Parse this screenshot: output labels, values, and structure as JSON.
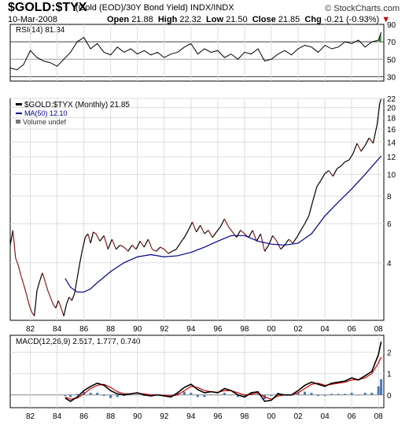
{
  "header": {
    "symbol": "$GOLD:$TYX",
    "description": "(Gold (EOD)/30Y Bond Yield)  INDX/INDX",
    "site": "© StockCharts.com",
    "date": "10-Mar-2008",
    "open_label": "Open",
    "open": "21.88",
    "high_label": "High",
    "high": "22.32",
    "low_label": "Low",
    "low": "21.50",
    "close_label": "Close",
    "close": "21.85",
    "chg_label": "Chg",
    "chg": "-0.21 (-0.93%)"
  },
  "colors": {
    "price_up": "#000000",
    "price_down": "#8b1a1a",
    "ma": "#00008b",
    "macd_signal": "#d40000",
    "macd_hist": "#4a7ab8",
    "rsi_fill": "#2e8b2e"
  },
  "chart_data": [
    {
      "type": "line",
      "panel": "rsi",
      "legend": "RSI(14) 81.34",
      "ylim": [
        25,
        90
      ],
      "yticks": [
        30,
        50,
        70,
        90
      ],
      "reference_lines": [
        30,
        50,
        70
      ],
      "series": [
        {
          "x": [
            1980.5,
            1981,
            1981.5,
            1982,
            1982.5,
            1983,
            1983.5,
            1984,
            1984.5,
            1985,
            1985.5,
            1986,
            1986.5,
            1987,
            1987.5,
            1988,
            1988.5,
            1989,
            1989.5,
            1990,
            1990.5,
            1991,
            1991.5,
            1992,
            1992.5,
            1993,
            1993.5,
            1994,
            1994.5,
            1995,
            1995.5,
            1996,
            1996.5,
            1997,
            1997.5,
            1998,
            1998.5,
            1999,
            1999.5,
            2000,
            2000.5,
            2001,
            2001.5,
            2002,
            2002.5,
            2003,
            2003.5,
            2004,
            2004.5,
            2005,
            2005.5,
            2006,
            2006.5,
            2007,
            2007.5,
            2008,
            2008.2
          ],
          "values": [
            40,
            38,
            44,
            60,
            52,
            48,
            46,
            42,
            50,
            58,
            70,
            75,
            62,
            68,
            58,
            55,
            64,
            58,
            62,
            56,
            60,
            55,
            58,
            52,
            56,
            58,
            64,
            68,
            56,
            62,
            58,
            60,
            52,
            56,
            50,
            58,
            56,
            62,
            48,
            50,
            56,
            60,
            55,
            62,
            66,
            64,
            58,
            66,
            62,
            64,
            70,
            68,
            72,
            64,
            70,
            72,
            81
          ]
        }
      ]
    },
    {
      "type": "line",
      "panel": "price",
      "scale": "log",
      "title": "$GOLD:$TYX (Monthly) 21.85",
      "legend": [
        "$GOLD:$TYX (Monthly) 21.85",
        "MA(50) 12.10",
        "Volume undef"
      ],
      "ylim": [
        2.2,
        22
      ],
      "yticks": [
        4,
        6,
        8,
        10,
        12,
        14,
        16,
        18,
        20,
        22
      ],
      "xlim": [
        1980.5,
        2008.4
      ],
      "xticks": [
        "82",
        "84",
        "86",
        "88",
        "90",
        "92",
        "94",
        "96",
        "98",
        "00",
        "02",
        "04",
        "06",
        "08"
      ],
      "xtick_values": [
        1982,
        1984,
        1986,
        1988,
        1990,
        1992,
        1994,
        1996,
        1998,
        2000,
        2002,
        2004,
        2006,
        2008
      ],
      "series": [
        {
          "name": "$GOLD:$TYX (Monthly)",
          "x": [
            1980.5,
            1980.7,
            1980.9,
            1981.1,
            1981.3,
            1981.5,
            1981.7,
            1981.9,
            1982.1,
            1982.3,
            1982.5,
            1982.7,
            1982.9,
            1983.1,
            1983.3,
            1983.5,
            1983.7,
            1983.9,
            1984.1,
            1984.3,
            1984.5,
            1984.7,
            1984.9,
            1985.1,
            1985.3,
            1985.5,
            1985.7,
            1985.9,
            1986.1,
            1986.3,
            1986.5,
            1986.7,
            1986.9,
            1987.2,
            1987.5,
            1987.8,
            1988.1,
            1988.4,
            1988.7,
            1989,
            1989.3,
            1989.6,
            1989.9,
            1990.2,
            1990.5,
            1990.8,
            1991.1,
            1991.4,
            1991.7,
            1992,
            1992.3,
            1992.6,
            1992.9,
            1993.2,
            1993.5,
            1993.8,
            1994.1,
            1994.4,
            1994.7,
            1995,
            1995.3,
            1995.6,
            1995.9,
            1996.2,
            1996.5,
            1996.8,
            1997.1,
            1997.4,
            1997.7,
            1998,
            1998.3,
            1998.6,
            1998.9,
            1999.2,
            1999.5,
            1999.8,
            2000.1,
            2000.4,
            2000.7,
            2001,
            2001.3,
            2001.6,
            2001.9,
            2002.2,
            2002.5,
            2002.8,
            2003.1,
            2003.4,
            2003.7,
            2004,
            2004.3,
            2004.6,
            2004.9,
            2005.2,
            2005.5,
            2005.8,
            2006.1,
            2006.4,
            2006.7,
            2007,
            2007.3,
            2007.6,
            2007.9,
            2008.1,
            2008.2
          ],
          "values": [
            4.8,
            5.6,
            4.2,
            3.9,
            3.5,
            3.2,
            2.9,
            2.6,
            2.4,
            2.3,
            3.0,
            3.3,
            3.6,
            3.3,
            3.0,
            2.8,
            2.6,
            2.5,
            2.7,
            2.5,
            2.3,
            2.6,
            2.8,
            2.7,
            2.9,
            3.4,
            4.0,
            4.6,
            5.2,
            5.4,
            4.9,
            5.5,
            5.4,
            5.0,
            5.3,
            4.6,
            5.1,
            4.6,
            4.8,
            4.7,
            4.5,
            4.8,
            4.6,
            5.0,
            4.7,
            5.1,
            4.6,
            4.5,
            4.7,
            4.6,
            4.4,
            4.5,
            4.6,
            4.9,
            5.2,
            5.6,
            6.1,
            5.5,
            5.9,
            5.4,
            5.6,
            5.2,
            5.5,
            5.8,
            6.3,
            5.8,
            5.5,
            5.2,
            5.6,
            5.4,
            5.2,
            5.6,
            5.0,
            5.4,
            4.5,
            4.8,
            5.3,
            5.0,
            4.6,
            4.8,
            5.1,
            4.9,
            5.2,
            5.6,
            6.0,
            6.5,
            7.6,
            8.8,
            9.4,
            10.1,
            10.4,
            9.8,
            10.6,
            10.9,
            11.4,
            11.6,
            12.4,
            13.8,
            12.7,
            13.5,
            14.6,
            13.8,
            16.8,
            21.0,
            21.85
          ]
        },
        {
          "name": "MA(50)",
          "x": [
            1984.6,
            1985,
            1985.5,
            1986,
            1986.5,
            1987,
            1988,
            1989,
            1990,
            1991,
            1992,
            1993,
            1994,
            1995,
            1996,
            1997,
            1998,
            1999,
            2000,
            2001,
            2002,
            2003,
            2004,
            2005,
            2006,
            2007,
            2008.2
          ],
          "values": [
            3.4,
            3.1,
            2.95,
            2.95,
            3.05,
            3.25,
            3.65,
            4.0,
            4.25,
            4.35,
            4.25,
            4.3,
            4.45,
            4.7,
            5.0,
            5.3,
            5.3,
            5.0,
            4.85,
            4.8,
            4.9,
            5.4,
            6.5,
            7.5,
            8.6,
            10.0,
            12.1
          ]
        }
      ]
    },
    {
      "type": "line",
      "panel": "macd",
      "legend": "MACD(12,26,9) 2.517, 1.777, 0.740",
      "ylim": [
        -0.6,
        2.8
      ],
      "yticks": [
        0,
        1,
        2
      ],
      "series": [
        {
          "name": "MACD",
          "x": [
            1984.6,
            1985,
            1985.5,
            1986,
            1986.5,
            1987,
            1987.5,
            1988,
            1988.5,
            1989,
            1989.5,
            1990,
            1990.5,
            1991,
            1991.5,
            1992,
            1992.5,
            1993,
            1993.5,
            1994,
            1994.5,
            1995,
            1995.5,
            1996,
            1996.5,
            1997,
            1997.5,
            1998,
            1998.5,
            1999,
            1999.5,
            2000,
            2000.5,
            2001,
            2001.5,
            2002,
            2002.5,
            2003,
            2003.5,
            2004,
            2004.5,
            2005,
            2005.5,
            2006,
            2006.5,
            2007,
            2007.5,
            2008,
            2008.2
          ],
          "values": [
            -0.15,
            -0.3,
            -0.1,
            0.2,
            0.4,
            0.55,
            0.45,
            0.2,
            0.05,
            0.0,
            0.05,
            0.1,
            0.0,
            -0.05,
            0.0,
            -0.05,
            -0.1,
            0.1,
            0.35,
            0.5,
            0.25,
            0.1,
            0.15,
            0.1,
            0.3,
            0.2,
            0.0,
            -0.1,
            0.1,
            0.15,
            -0.3,
            -0.25,
            0.05,
            0.0,
            0.0,
            0.2,
            0.45,
            0.6,
            0.5,
            0.4,
            0.55,
            0.6,
            0.65,
            0.8,
            0.7,
            0.9,
            1.1,
            1.9,
            2.5
          ]
        },
        {
          "name": "Signal",
          "x": [
            1984.6,
            1985,
            1985.5,
            1986,
            1986.5,
            1987,
            1987.5,
            1988,
            1988.5,
            1989,
            1989.5,
            1990,
            1990.5,
            1991,
            1991.5,
            1992,
            1992.5,
            1993,
            1993.5,
            1994,
            1994.5,
            1995,
            1995.5,
            1996,
            1996.5,
            1997,
            1997.5,
            1998,
            1998.5,
            1999,
            1999.5,
            2000,
            2000.5,
            2001,
            2001.5,
            2002,
            2002.5,
            2003,
            2003.5,
            2004,
            2004.5,
            2005,
            2005.5,
            2006,
            2006.5,
            2007,
            2007.5,
            2008,
            2008.2
          ],
          "values": [
            -0.1,
            -0.2,
            -0.15,
            0.05,
            0.3,
            0.45,
            0.5,
            0.35,
            0.15,
            0.05,
            0.05,
            0.08,
            0.05,
            0.0,
            0.0,
            -0.02,
            -0.05,
            0.0,
            0.2,
            0.4,
            0.35,
            0.2,
            0.15,
            0.12,
            0.2,
            0.2,
            0.1,
            0.0,
            0.02,
            0.1,
            -0.1,
            -0.2,
            -0.05,
            0.0,
            0.0,
            0.1,
            0.3,
            0.5,
            0.55,
            0.45,
            0.5,
            0.55,
            0.6,
            0.7,
            0.72,
            0.8,
            1.0,
            1.5,
            1.78
          ]
        },
        {
          "name": "Histogram",
          "x": [
            1984.6,
            1985,
            1985.5,
            1986,
            1986.5,
            1987,
            1987.5,
            1988,
            1988.5,
            1989,
            1989.5,
            1990,
            1990.5,
            1991,
            1991.5,
            1992,
            1992.5,
            1993,
            1993.5,
            1994,
            1994.5,
            1995,
            1995.5,
            1996,
            1996.5,
            1997,
            1997.5,
            1998,
            1998.5,
            1999,
            1999.5,
            2000,
            2000.5,
            2001,
            2001.5,
            2002,
            2002.5,
            2003,
            2003.5,
            2004,
            2004.5,
            2005,
            2005.5,
            2006,
            2006.5,
            2007,
            2007.5,
            2008,
            2008.2
          ],
          "values": [
            -0.05,
            -0.1,
            0.05,
            0.15,
            0.1,
            0.1,
            -0.05,
            -0.15,
            -0.1,
            -0.05,
            0.0,
            0.02,
            -0.05,
            -0.05,
            0.0,
            -0.03,
            -0.05,
            0.1,
            0.15,
            0.1,
            -0.1,
            -0.1,
            0.0,
            -0.02,
            0.1,
            0.0,
            -0.1,
            -0.1,
            0.08,
            0.05,
            -0.2,
            -0.05,
            0.1,
            0.0,
            0.0,
            0.1,
            0.15,
            0.1,
            -0.05,
            -0.05,
            0.05,
            0.05,
            0.05,
            0.1,
            -0.02,
            0.1,
            0.1,
            0.4,
            0.74
          ]
        }
      ]
    }
  ]
}
